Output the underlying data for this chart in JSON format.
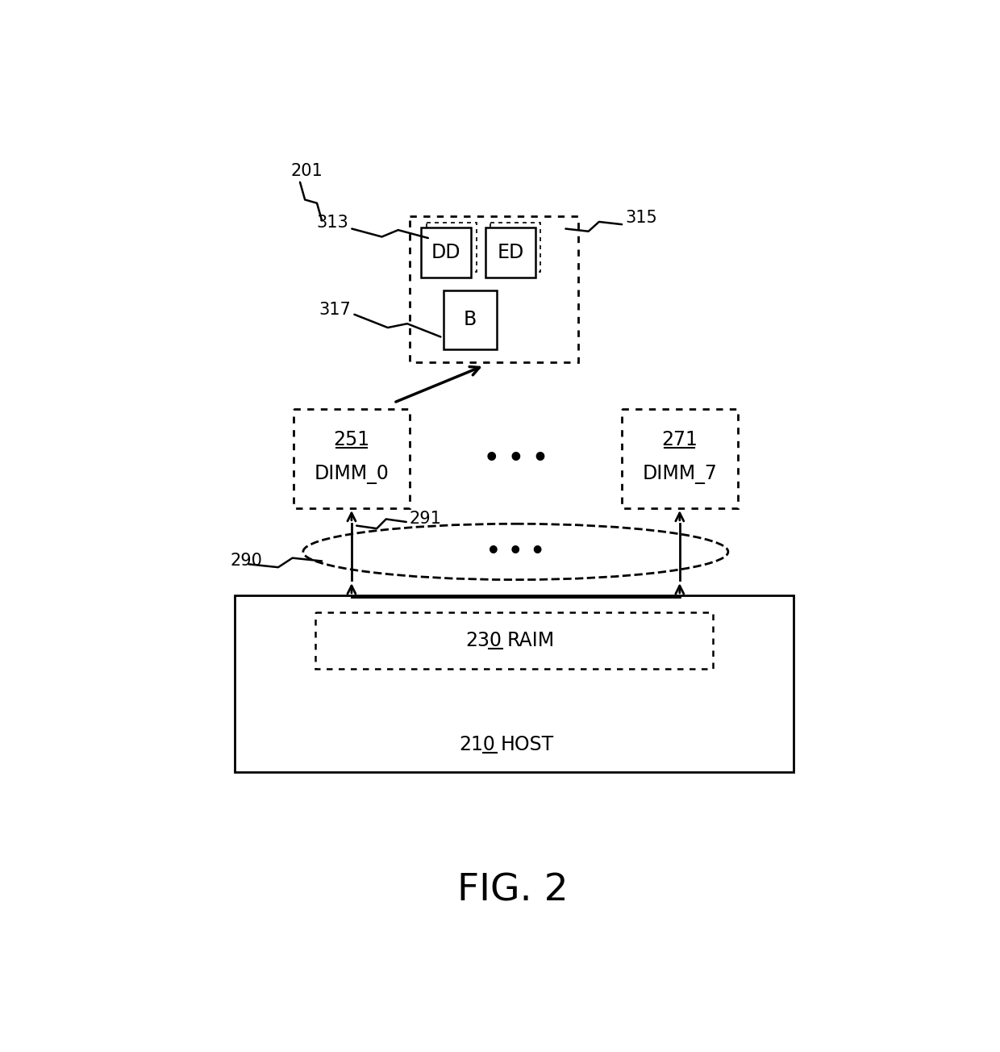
{
  "bg_color": "#ffffff",
  "fig_title": "FIG. 2",
  "fig_title_fontsize": 34,
  "label_201": "201",
  "label_313": "313",
  "label_315": "315",
  "label_317": "317",
  "label_251": "251",
  "label_dimm0": "DIMM_0",
  "label_271": "271",
  "label_dimm7": "DIMM_7",
  "label_291": "291",
  "label_290": "290",
  "label_230": "230",
  "label_raim": "RAIM",
  "label_210": "210",
  "label_host": "HOST",
  "label_DD": "DD",
  "label_ED": "ED",
  "label_B": "B",
  "dots": "• • •",
  "font_color": "#000000",
  "box_edge_color": "#000000",
  "box_fill": "#ffffff",
  "arrow_color": "#000000"
}
